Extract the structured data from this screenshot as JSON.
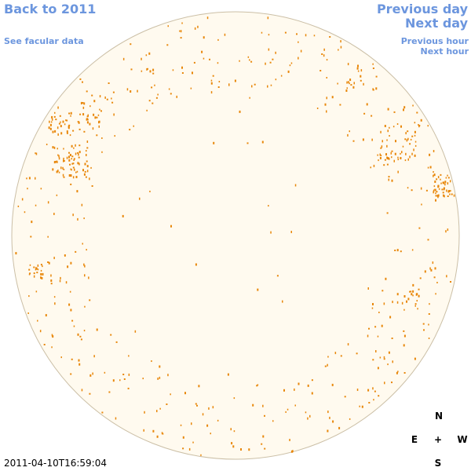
{
  "header": {
    "back_link": "Back to 2011",
    "facular_link": "See facular data",
    "previous_day": "Previous day",
    "next_day": "Next day",
    "previous_hour": "Previous hour",
    "next_hour": "Next hour"
  },
  "compass": {
    "north": "N",
    "east": "E",
    "center": "+",
    "west": "W",
    "south": "S"
  },
  "timestamp": "2011-04-10T16:59:04"
}
